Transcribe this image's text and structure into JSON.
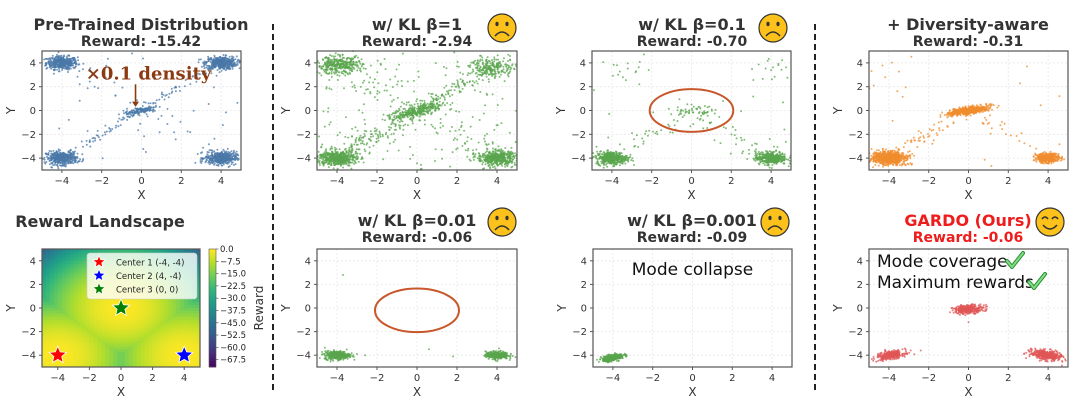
{
  "figure": {
    "separators": 2
  },
  "chart_data": [
    {
      "id": "pretrained",
      "type": "scatter",
      "title": "Pre-Trained Distribution",
      "subtitle": "Reward: -15.42",
      "xlabel": "X",
      "ylabel": "Y",
      "xlim": [
        -5,
        5
      ],
      "ylim": [
        -5,
        5
      ],
      "xticks": [
        -4,
        -2,
        0,
        2,
        4
      ],
      "yticks": [
        -4,
        -2,
        0,
        2,
        4
      ],
      "grid": true,
      "color": "#4a78a8",
      "clusters": [
        {
          "center": [
            -4,
            4
          ],
          "std": 0.3,
          "weight": "high"
        },
        {
          "center": [
            4,
            4
          ],
          "std": 0.3,
          "weight": "high"
        },
        {
          "center": [
            -4,
            -4
          ],
          "std": 0.3,
          "weight": "high"
        },
        {
          "center": [
            4,
            -4
          ],
          "std": 0.3,
          "weight": "high"
        },
        {
          "center": [
            0,
            0
          ],
          "std": 0.3,
          "weight": "low"
        }
      ],
      "annotation": {
        "text": "×0.1 density",
        "points_to": [
          -0.3,
          0.1
        ]
      },
      "emoji": ""
    },
    {
      "id": "kl1",
      "type": "scatter",
      "title": "w/ KL β=1",
      "subtitle": "Reward: -2.94",
      "xlabel": "X",
      "ylabel": "Y",
      "xlim": [
        -5,
        5
      ],
      "ylim": [
        -5,
        5
      ],
      "xticks": [
        -4,
        -2,
        0,
        2,
        4
      ],
      "yticks": [
        -4,
        -2,
        0,
        2,
        4
      ],
      "grid": true,
      "color": "#5aa64e",
      "clusters": [
        {
          "center": [
            -3.9,
            3.8
          ],
          "std": 0.45
        },
        {
          "center": [
            3.8,
            3.6
          ],
          "std": 0.45
        },
        {
          "center": [
            -4,
            -4
          ],
          "std": 0.35
        },
        {
          "center": [
            4,
            -4
          ],
          "std": 0.35
        },
        {
          "center": [
            0,
            0
          ],
          "std": 0.35
        }
      ],
      "emoji": "sad"
    },
    {
      "id": "kl01",
      "type": "scatter",
      "title": "w/ KL β=0.1",
      "subtitle": "Reward: -0.70",
      "xlabel": "X",
      "ylabel": "Y",
      "xlim": [
        -5,
        5
      ],
      "ylim": [
        -5,
        5
      ],
      "xticks": [
        -4,
        -2,
        0,
        2,
        4
      ],
      "yticks": [
        -4,
        -2,
        0,
        2,
        4
      ],
      "grid": true,
      "color": "#5aa64e",
      "clusters": [
        {
          "center": [
            -4,
            -4
          ],
          "std": 0.3
        },
        {
          "center": [
            4,
            -4
          ],
          "std": 0.3
        },
        {
          "center": [
            0,
            0
          ],
          "std": 0.25,
          "weight": "low"
        }
      ],
      "highlight_ellipse": {
        "center": [
          0,
          0
        ],
        "rx": 2.1,
        "ry": 1.8
      },
      "emoji": "sad"
    },
    {
      "id": "diversity",
      "type": "scatter",
      "title": "+ Diversity-aware",
      "subtitle": "Reward: -0.31",
      "xlabel": "X",
      "ylabel": "Y",
      "xlim": [
        -5,
        5
      ],
      "ylim": [
        -5,
        5
      ],
      "xticks": [
        -4,
        -2,
        0,
        2,
        4
      ],
      "yticks": [
        -4,
        -2,
        0,
        2,
        4
      ],
      "grid": true,
      "color": "#f08c2e",
      "clusters": [
        {
          "center": [
            -4,
            -4
          ],
          "std": 0.35
        },
        {
          "center": [
            4,
            -4
          ],
          "std": 0.25
        },
        {
          "center": [
            0,
            0
          ],
          "std": 0.3
        }
      ],
      "emoji": ""
    },
    {
      "id": "landscape",
      "type": "heatmap",
      "title": "Reward Landscape",
      "xlabel": "X",
      "ylabel": "Y",
      "xlim": [
        -5,
        5
      ],
      "ylim": [
        -5,
        5
      ],
      "xticks": [
        -4,
        -2,
        0,
        2,
        4
      ],
      "yticks": [
        -4,
        -2,
        0,
        2,
        4
      ],
      "colorbar": {
        "label": "Reward",
        "range": [
          -72,
          0
        ],
        "ticks": [
          "0.0",
          "−7.5",
          "−15.0",
          "−22.5",
          "−30.0",
          "−37.5",
          "−45.0",
          "−52.5",
          "−60.0",
          "−67.5"
        ],
        "colormap": "viridis"
      },
      "legend": [
        {
          "label": "Center 1 (-4, -4)",
          "color": "#ff0000",
          "point": [
            -4,
            -4
          ]
        },
        {
          "label": "Center 2 (4, -4)",
          "color": "#0000ff",
          "point": [
            4,
            -4
          ]
        },
        {
          "label": "Center 3 (0, 0)",
          "color": "#008000",
          "point": [
            0,
            0
          ]
        }
      ],
      "legend_position": "top-right"
    },
    {
      "id": "kl001",
      "type": "scatter",
      "title": "w/ KL β=0.01",
      "subtitle": "Reward: -0.06",
      "xlabel": "X",
      "ylabel": "Y",
      "xlim": [
        -5,
        5
      ],
      "ylim": [
        -5,
        5
      ],
      "xticks": [
        -4,
        -2,
        0,
        2,
        4
      ],
      "yticks": [
        -4,
        -2,
        0,
        2,
        4
      ],
      "grid": true,
      "color": "#5aa64e",
      "clusters": [
        {
          "center": [
            -4,
            -4
          ],
          "std": 0.22
        },
        {
          "center": [
            4,
            -4
          ],
          "std": 0.22
        }
      ],
      "highlight_ellipse": {
        "center": [
          0,
          -0.2
        ],
        "rx": 2.1,
        "ry": 1.85
      },
      "emoji": "sad"
    },
    {
      "id": "kl0001",
      "type": "scatter",
      "title": "w/ KL β=0.001",
      "subtitle": "Reward: -0.09",
      "xlabel": "X",
      "ylabel": "Y",
      "xlim": [
        -5,
        5
      ],
      "ylim": [
        -5,
        5
      ],
      "xticks": [
        -4,
        -2,
        0,
        2,
        4
      ],
      "yticks": [
        -4,
        -2,
        0,
        2,
        4
      ],
      "grid": true,
      "color": "#5aa64e",
      "clusters": [
        {
          "center": [
            -4,
            -4.2
          ],
          "std": 0.15
        }
      ],
      "annotation_text": "Mode collapse",
      "emoji": "sad"
    },
    {
      "id": "gardo",
      "type": "scatter",
      "title": "GARDO (Ours)",
      "subtitle": "Reward: -0.06",
      "title_color": "#ee1c1c",
      "xlabel": "X",
      "ylabel": "Y",
      "xlim": [
        -5,
        5
      ],
      "ylim": [
        -5,
        5
      ],
      "xticks": [
        -4,
        -2,
        0,
        2,
        4
      ],
      "yticks": [
        -4,
        -2,
        0,
        2,
        4
      ],
      "grid": true,
      "color": "#e05555",
      "clusters": [
        {
          "center": [
            -3.9,
            -4
          ],
          "std": 0.22
        },
        {
          "center": [
            3.9,
            -4
          ],
          "std": 0.22
        },
        {
          "center": [
            0,
            -0.1
          ],
          "std": 0.22
        }
      ],
      "checklist": [
        "Mode coverage",
        "Maximum rewards"
      ],
      "emoji": "happy"
    }
  ]
}
